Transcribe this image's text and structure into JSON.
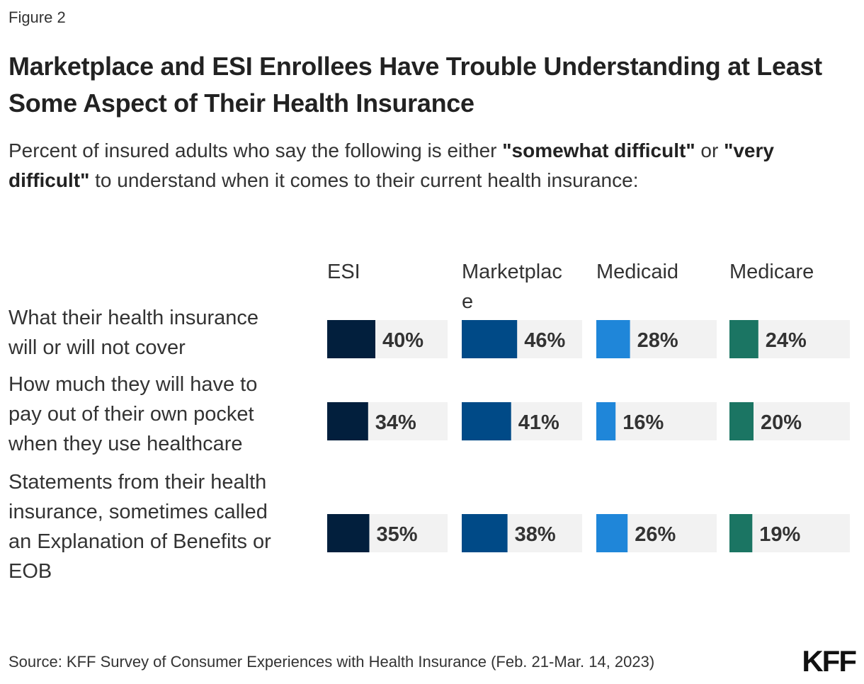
{
  "figure_label": "Figure 2",
  "subtitle": {
    "part1": "Percent of insured adults who say the following is either ",
    "bold1": "\"somewhat difficult\"",
    "part2": " or ",
    "bold2": "\"very difficult\"",
    "part3": " to understand when it comes to their current health insurance:"
  },
  "source": "Source: KFF Survey of Consumer Experiences with Health Insurance (Feb. 21-Mar. 14, 2023)",
  "logo": "KFF",
  "colors": {
    "ESI": "#021f3d",
    "Marketplace": "#004a87",
    "Medicaid": "#1f86d9",
    "Medicare": "#1b7563",
    "track": "#f2f2f2"
  },
  "chart_data": {
    "type": "bar",
    "title": "Marketplace and ESI Enrollees Have Trouble Understanding at Least Some Aspect of Their Health Insurance",
    "categories": [
      "What their health insurance will or will not cover",
      "How much they will have to pay out of their own pocket when they use healthcare",
      "Statements from their health insurance, sometimes called an Explanation of Benefits or EOB"
    ],
    "category_lines": [
      [
        "What their health insurance",
        "will or will not cover"
      ],
      [
        "How much they will have to",
        "pay out of their own pocket",
        "when they use healthcare"
      ],
      [
        "Statements from their health",
        "insurance, sometimes called",
        "an Explanation of Benefits or",
        "EOB"
      ]
    ],
    "series": [
      {
        "name": "ESI",
        "header_lines": [
          "ESI"
        ],
        "values": [
          40,
          34,
          35
        ]
      },
      {
        "name": "Marketplace",
        "header_lines": [
          "Marketplac",
          "e"
        ],
        "values": [
          46,
          41,
          38
        ]
      },
      {
        "name": "Medicaid",
        "header_lines": [
          "Medicaid"
        ],
        "values": [
          28,
          16,
          26
        ]
      },
      {
        "name": "Medicare",
        "header_lines": [
          "Medicare"
        ],
        "values": [
          24,
          20,
          19
        ]
      }
    ],
    "value_suffix": "%",
    "xlim": [
      0,
      100
    ],
    "grid": false,
    "legend": "column headers"
  }
}
